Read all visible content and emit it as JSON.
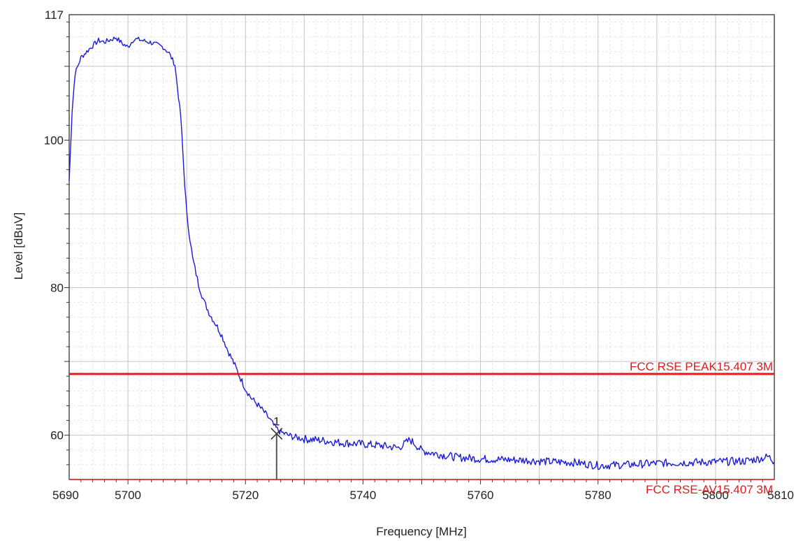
{
  "chart_data": {
    "type": "line",
    "xlabel": "Frequency [MHz]",
    "ylabel": "Level [dBuV]",
    "xlim": [
      5690,
      5810
    ],
    "ylim": [
      54,
      117
    ],
    "x_ticks": [
      5690,
      5700,
      5720,
      5740,
      5760,
      5780,
      5800,
      5810
    ],
    "y_ticks": [
      60,
      80,
      100,
      117
    ],
    "grid": true,
    "series": [
      {
        "color": "#1a1adb",
        "x": [
          5690,
          5690.5,
          5691,
          5692,
          5693,
          5694,
          5695,
          5696,
          5697,
          5698,
          5699,
          5700,
          5701,
          5702,
          5703,
          5704,
          5705,
          5706,
          5707,
          5708,
          5709,
          5709.5,
          5710,
          5711,
          5712,
          5713,
          5714,
          5715,
          5716,
          5717,
          5718,
          5719,
          5720,
          5721,
          5722,
          5723,
          5724,
          5725,
          5726,
          5727,
          5728,
          5730,
          5733,
          5736,
          5740,
          5743,
          5746,
          5747,
          5748,
          5749,
          5750,
          5753,
          5756,
          5760,
          5764,
          5768,
          5772,
          5776,
          5780,
          5785,
          5790,
          5795,
          5800,
          5805,
          5808,
          5809,
          5810
        ],
        "y": [
          94.5,
          104,
          109,
          111.2,
          112,
          112.8,
          113.5,
          113.3,
          113.6,
          113.9,
          113.1,
          112.6,
          113.7,
          113.6,
          113.4,
          113.2,
          112.9,
          112.6,
          111.8,
          110.2,
          103,
          96,
          90,
          84,
          80.5,
          78,
          76.3,
          75,
          73.5,
          71.5,
          69.8,
          68,
          66.3,
          65,
          64.2,
          63.3,
          62.3,
          61.1,
          60.4,
          60.1,
          59.8,
          59.5,
          59.3,
          59.0,
          58.8,
          58.6,
          58.3,
          58.8,
          59.4,
          58.7,
          57.9,
          57.4,
          57.0,
          56.8,
          56.7,
          56.6,
          56.4,
          56.3,
          55.9,
          56.0,
          56.2,
          56.3,
          56.4,
          56.5,
          56.9,
          57.1,
          56.4
        ]
      }
    ],
    "limit_lines": [
      {
        "label": "FCC RSE PEAK15.407 3M",
        "y": 68.3,
        "color": "#e01b1b"
      },
      {
        "label": "FCC RSE-AV15.407 3M",
        "y": 54.0,
        "color": "#e01b1b"
      }
    ],
    "markers": [
      {
        "label": "1",
        "x": 5725.3,
        "y": 60.2
      }
    ]
  }
}
